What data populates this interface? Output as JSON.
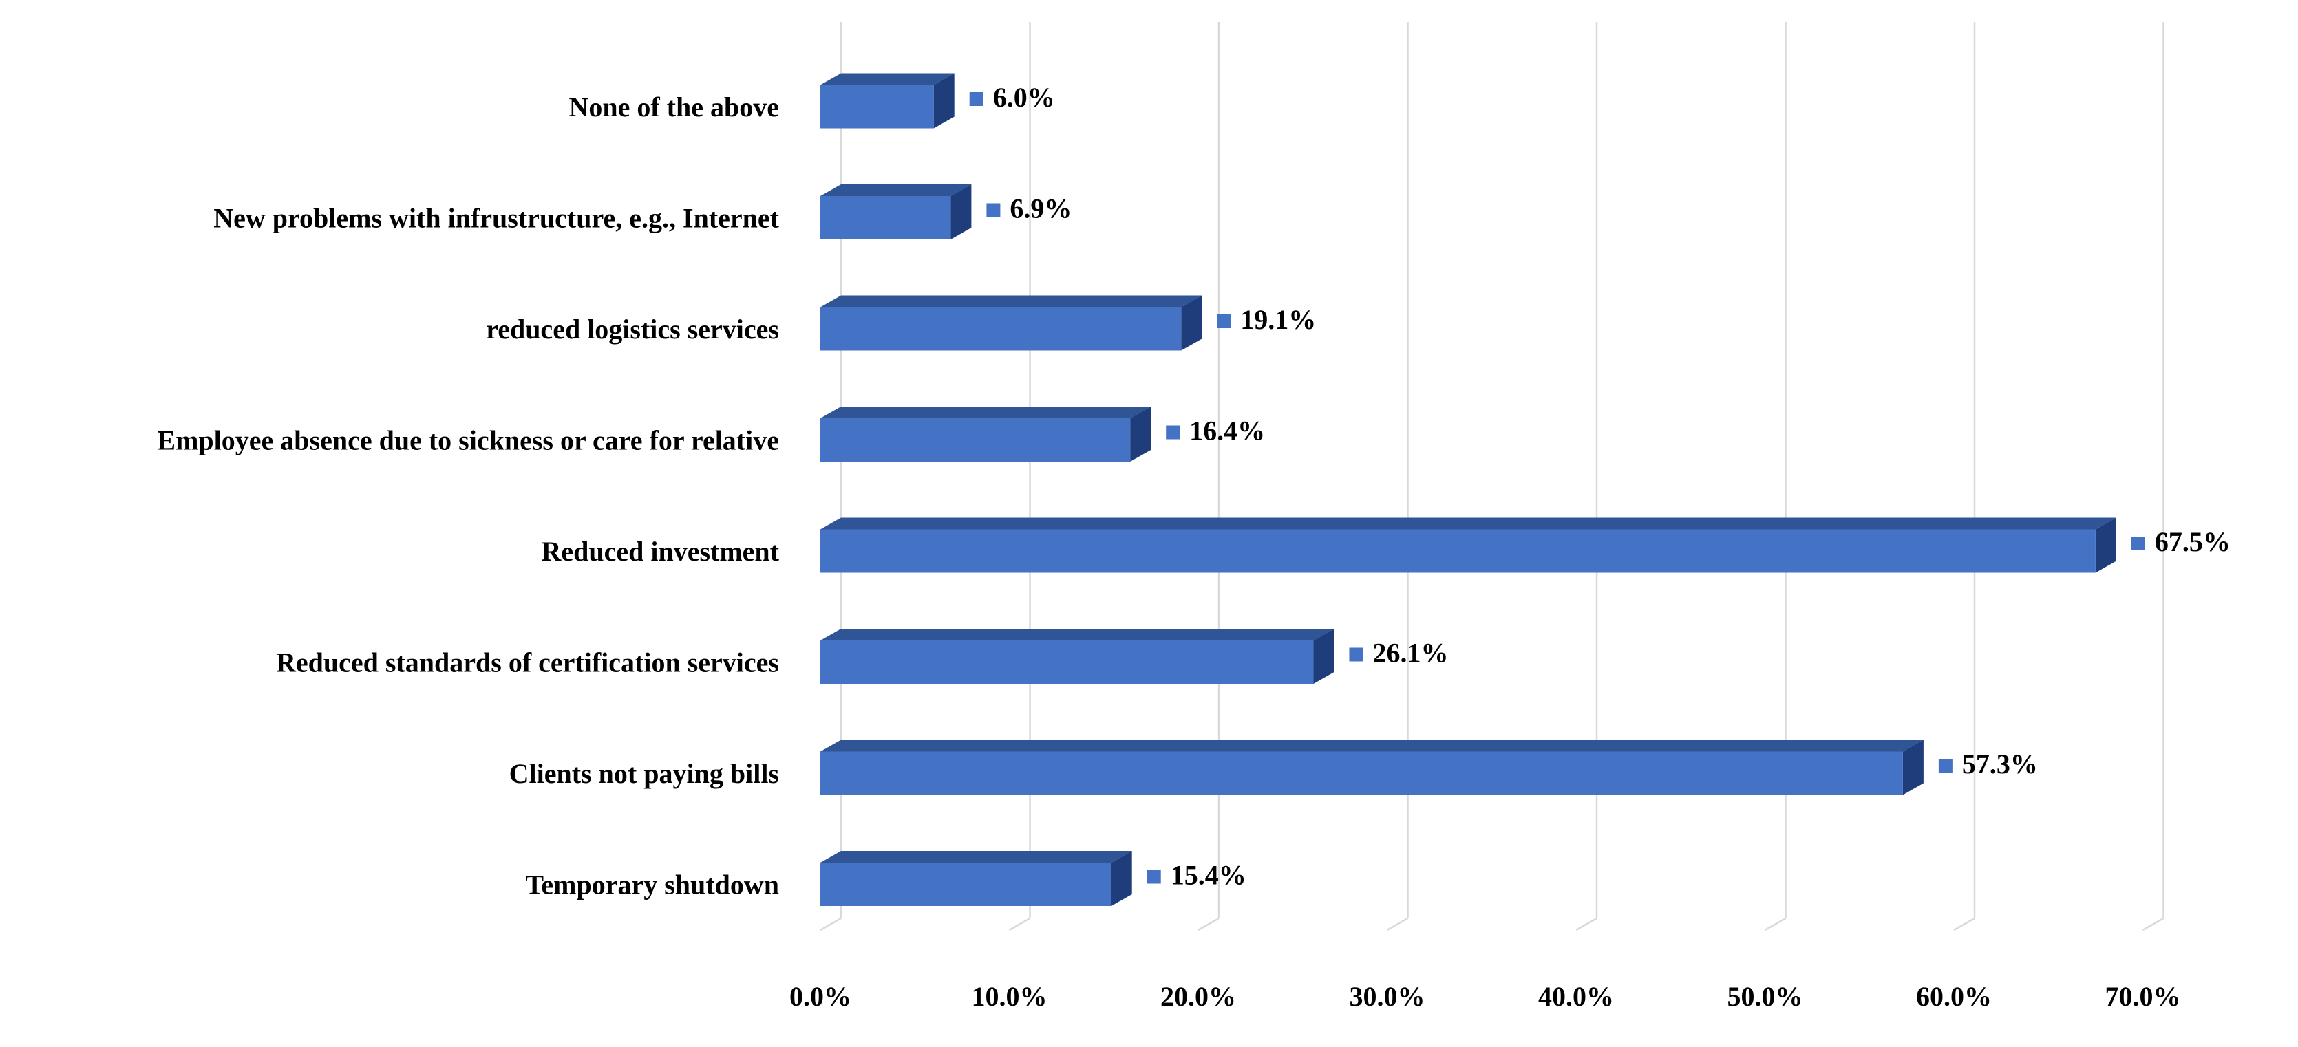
{
  "chart_data": {
    "type": "bar",
    "orientation": "horizontal",
    "title": "",
    "xlabel": "",
    "ylabel": "",
    "xlim": [
      0,
      70
    ],
    "x_ticks": [
      0,
      10,
      20,
      30,
      40,
      50,
      60,
      70
    ],
    "x_tick_labels": [
      "0.0%",
      "10.0%",
      "20.0%",
      "30.0%",
      "40.0%",
      "50.0%",
      "60.0%",
      "70.0%"
    ],
    "grid": true,
    "style": "3d-bar",
    "categories": [
      "None of the above",
      "New problems with infrustructure, e.g., Internet",
      "reduced logistics services",
      "Employee absence due to sickness or care for relative",
      "Reduced investment",
      "Reduced standards of certification services",
      "Clients not paying bills",
      "Temporary shutdown"
    ],
    "values": [
      6.0,
      6.9,
      19.1,
      16.4,
      67.5,
      26.1,
      57.3,
      15.4
    ],
    "value_labels": [
      "6.0%",
      "6.9%",
      "19.1%",
      "16.4%",
      "67.5%",
      "26.1%",
      "57.3%",
      "15.4%"
    ],
    "colors": {
      "bar_front": "#4472C4",
      "bar_top": "#2F5597",
      "bar_side": "#1F3D7A",
      "grid": "#D9D9D9",
      "marker": "#4472C4"
    }
  }
}
